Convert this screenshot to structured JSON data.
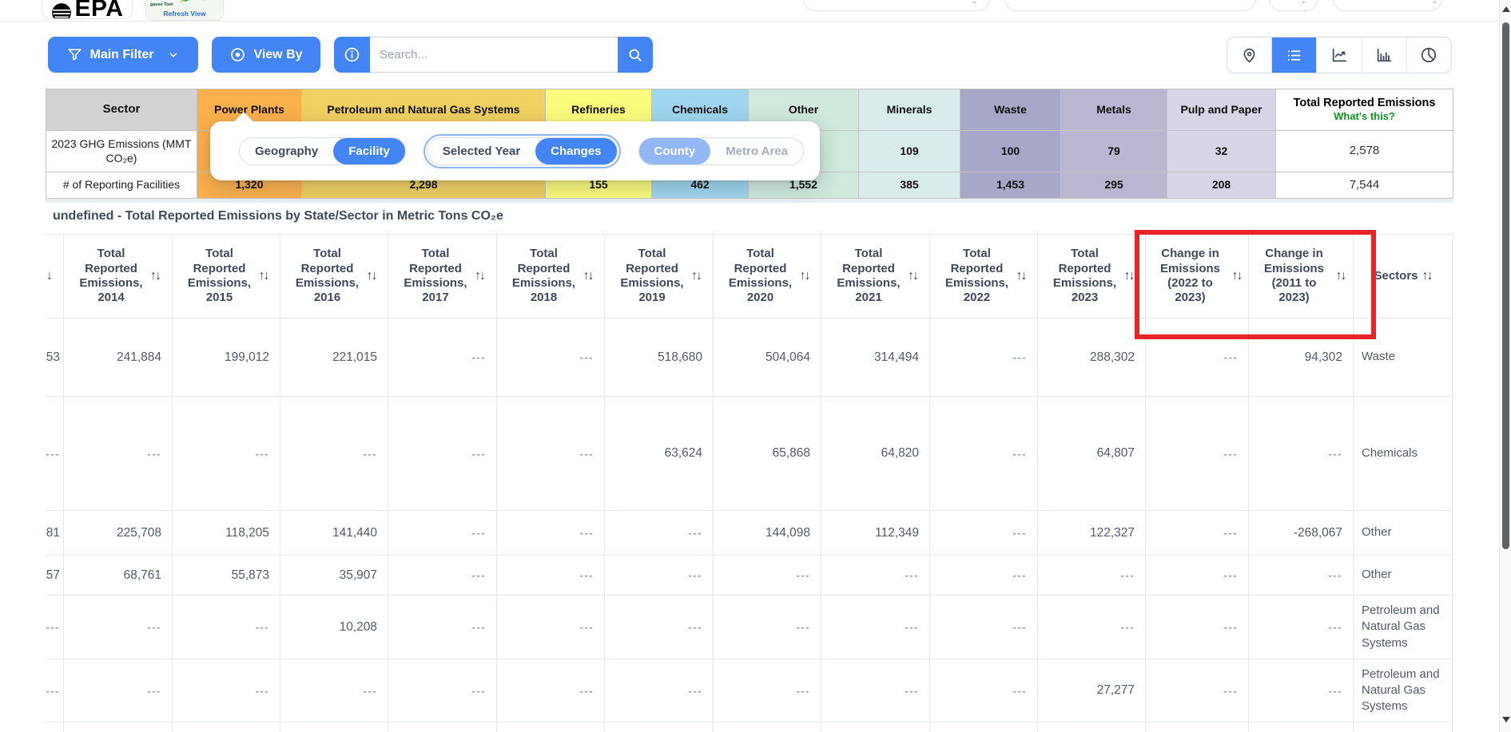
{
  "topbar": {
    "epa_logo": "EPA",
    "flight_tool": "Greenhouse gases Tool",
    "refresh_view": "Refresh View"
  },
  "toolbar": {
    "main_filter": "Main Filter",
    "view_by": "View By",
    "search_placeholder": "Search..."
  },
  "icons": {
    "sort": "↑↓",
    "sort_partial": "↓"
  },
  "sector_table": {
    "corner": "Sector",
    "row1_label": "2023 GHG Emissions (MMT CO₂e)",
    "row2_label": "# of Reporting Facilities",
    "total_header": "Total Reported Emissions",
    "whats_this": "What's this?",
    "columns": [
      {
        "name": "Power Plants",
        "color": "#fbb04c",
        "emissions": "",
        "facilities": "1,320"
      },
      {
        "name": "Petroleum and Natural Gas Systems",
        "color": "#f0d060",
        "emissions": "",
        "facilities": "2,298"
      },
      {
        "name": "Refineries",
        "color": "#fbfb7c",
        "emissions": "",
        "facilities": "155"
      },
      {
        "name": "Chemicals",
        "color": "#9fd5ee",
        "emissions": "",
        "facilities": "462"
      },
      {
        "name": "Other",
        "color": "#cfe9dc",
        "emissions": "",
        "facilities": "1,552"
      },
      {
        "name": "Minerals",
        "color": "#d9eceb",
        "emissions": "109",
        "facilities": "385"
      },
      {
        "name": "Waste",
        "color": "#a7a7c8",
        "emissions": "100",
        "facilities": "1,453"
      },
      {
        "name": "Metals",
        "color": "#b8b6d0",
        "emissions": "79",
        "facilities": "295"
      },
      {
        "name": "Pulp and Paper",
        "color": "#d8d6e6",
        "emissions": "32",
        "facilities": "208"
      }
    ],
    "total": {
      "emissions": "2,578",
      "facilities": "7,544"
    }
  },
  "popup": {
    "toggles": [
      {
        "name": "geography-facility",
        "options": [
          {
            "label": "Geography",
            "selected": false
          },
          {
            "label": "Facility",
            "selected": true
          }
        ]
      },
      {
        "name": "selectedyear-changes",
        "options": [
          {
            "label": "Selected Year",
            "selected": false
          },
          {
            "label": "Changes",
            "selected": true
          }
        ]
      },
      {
        "name": "county-metroarea",
        "options": [
          {
            "label": "County",
            "selected": true
          },
          {
            "label": "Metro Area",
            "selected": false
          }
        ]
      }
    ]
  },
  "table": {
    "title": "undefined - Total Reported Emissions by State/Sector in Metric Tons CO₂e",
    "columns": [
      "Total Reported Emissions, 2014",
      "Total Reported Emissions, 2015",
      "Total Reported Emissions, 2016",
      "Total Reported Emissions, 2017",
      "Total Reported Emissions, 2018",
      "Total Reported Emissions, 2019",
      "Total Reported Emissions, 2020",
      "Total Reported Emissions, 2021",
      "Total Reported Emissions, 2022",
      "Total Reported Emissions, 2023",
      "Change in Emissions (2022 to 2023)",
      "Change in Emissions (2011 to 2023)",
      "Sectors"
    ],
    "rows": [
      {
        "cells": [
          "53",
          "241,884",
          "199,012",
          "221,015",
          "---",
          "---",
          "518,680",
          "504,064",
          "314,494",
          "---",
          "288,302",
          "---",
          "94,302"
        ],
        "sector": "Waste"
      },
      {
        "cells": [
          "---",
          "---",
          "---",
          "---",
          "---",
          "---",
          "63,624",
          "65,868",
          "64,820",
          "---",
          "64,807",
          "---",
          "---"
        ],
        "sector": "Chemicals"
      },
      {
        "cells": [
          "81",
          "225,708",
          "118,205",
          "141,440",
          "---",
          "---",
          "---",
          "144,098",
          "112,349",
          "---",
          "122,327",
          "---",
          "-268,067"
        ],
        "sector": "Other"
      },
      {
        "cells": [
          "57",
          "68,761",
          "55,873",
          "35,907",
          "---",
          "---",
          "---",
          "---",
          "---",
          "---",
          "---",
          "---",
          "---"
        ],
        "sector": "Other"
      },
      {
        "cells": [
          "---",
          "---",
          "---",
          "10,208",
          "---",
          "---",
          "---",
          "---",
          "---",
          "---",
          "---",
          "---",
          "---"
        ],
        "sector": "Petroleum and Natural Gas Systems"
      },
      {
        "cells": [
          "---",
          "---",
          "---",
          "---",
          "---",
          "---",
          "---",
          "---",
          "---",
          "---",
          "27,277",
          "---",
          "---"
        ],
        "sector": "Petroleum and Natural Gas Systems"
      }
    ]
  }
}
